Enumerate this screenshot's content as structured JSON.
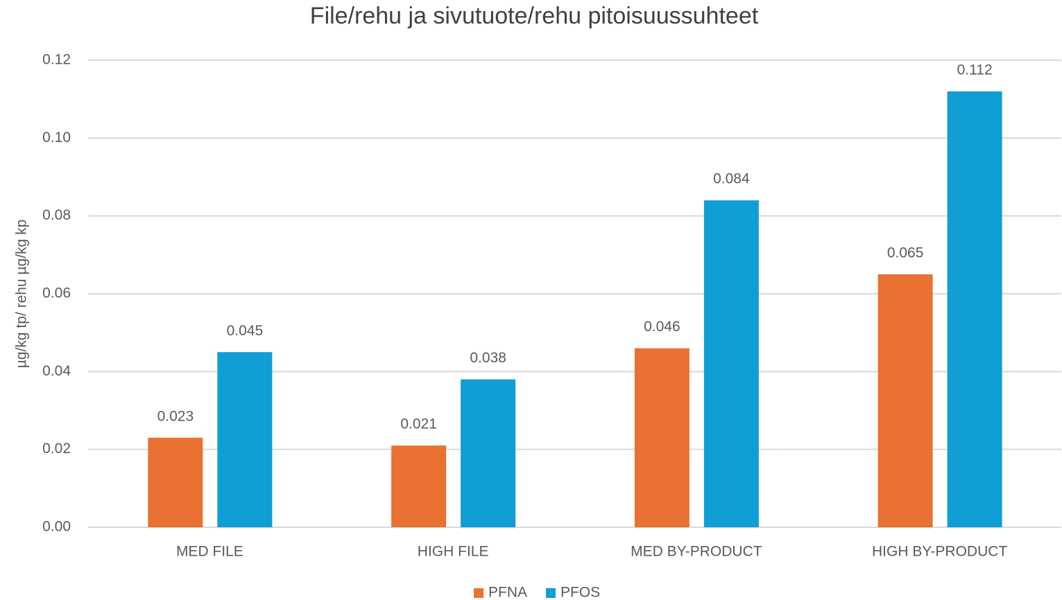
{
  "chart_data": {
    "type": "bar",
    "title": "File/rehu ja sivutuote/rehu pitoisuussuhteet",
    "y_label": "µg/kg tp/ rehu µg/kg kp",
    "categories": [
      "MED FILE",
      "HIGH FILE",
      "MED BY-PRODUCT",
      "HIGH BY-PRODUCT"
    ],
    "series": [
      {
        "name": "PFNA",
        "color": "#e97132",
        "values": [
          0.023,
          0.021,
          0.046,
          0.065
        ]
      },
      {
        "name": "PFOS",
        "color": "#0f9ed5",
        "values": [
          0.045,
          0.038,
          0.084,
          0.112
        ]
      }
    ],
    "ylim": [
      0,
      0.12
    ],
    "yticks": [
      {
        "value": 0,
        "label": "0.00"
      },
      0.02,
      0.04,
      0.06,
      0.08,
      {
        "value": 0.1,
        "label": "0.10"
      },
      {
        "value": 0.12,
        "label": "0.12"
      }
    ],
    "grid": true,
    "legend": "bottom"
  }
}
